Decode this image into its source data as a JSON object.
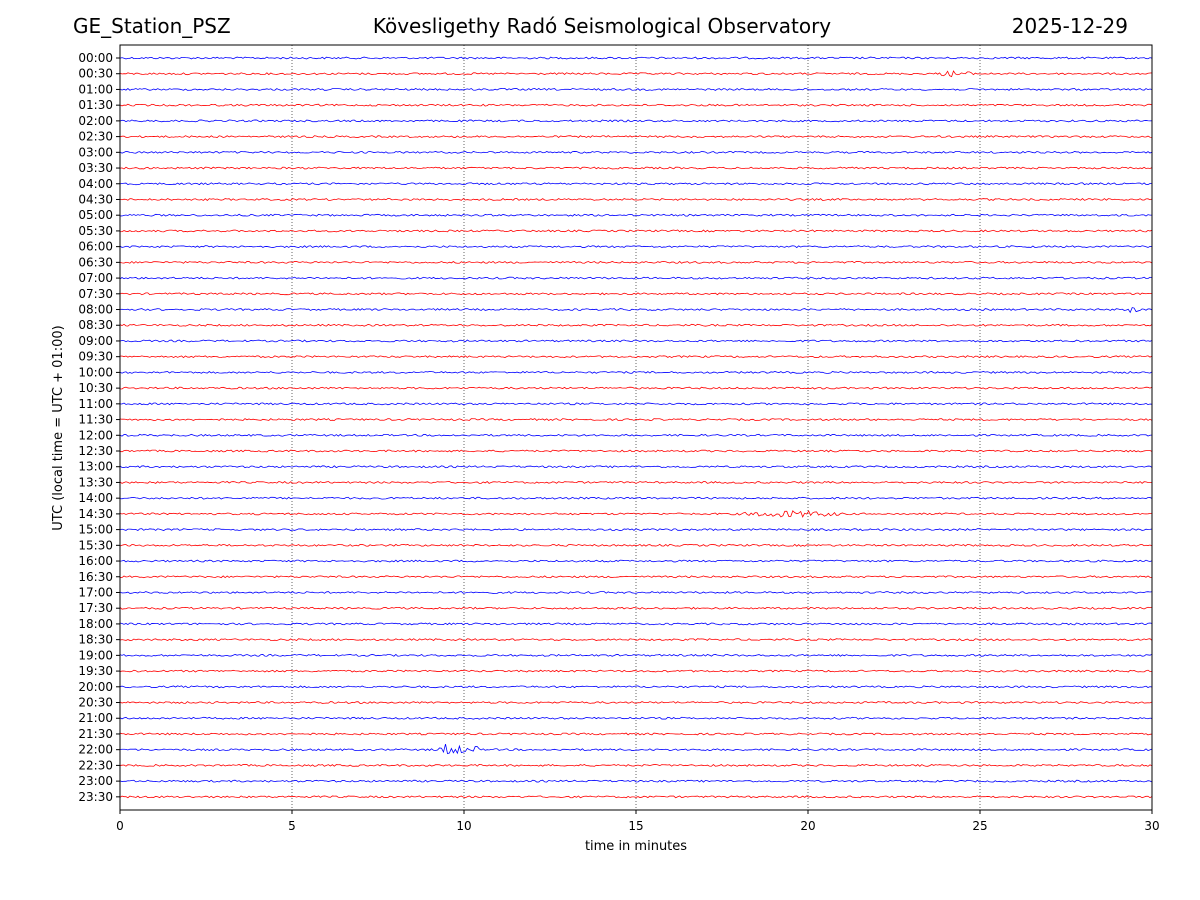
{
  "header": {
    "station": "GE_Station_PSZ",
    "title": "Kövesligethy Radó Seismological Observatory",
    "date": "2025-12-29"
  },
  "colors": {
    "even_trace": "#0000ff",
    "odd_trace": "#ff0000",
    "grid": "#000000"
  },
  "chart_data": {
    "type": "line",
    "title": "Kövesligethy Radó Seismological Observatory",
    "xlabel": "time in minutes",
    "ylabel": "UTC (local time = UTC + 01:00)",
    "xlim": [
      0,
      30
    ],
    "xticks": [
      0,
      5,
      10,
      15,
      20,
      25,
      30
    ],
    "grid": "vertical dotted at x ticks",
    "row_labels": [
      "00:00",
      "00:30",
      "01:00",
      "01:30",
      "02:00",
      "02:30",
      "03:00",
      "03:30",
      "04:00",
      "04:30",
      "05:00",
      "05:30",
      "06:00",
      "06:30",
      "07:00",
      "07:30",
      "08:00",
      "08:30",
      "09:00",
      "09:30",
      "10:00",
      "10:30",
      "11:00",
      "11:30",
      "12:00",
      "12:30",
      "13:00",
      "13:30",
      "14:00",
      "14:30",
      "15:00",
      "15:30",
      "16:00",
      "16:30",
      "17:00",
      "17:30",
      "18:00",
      "18:30",
      "19:00",
      "19:30",
      "20:00",
      "20:30",
      "21:00",
      "21:30",
      "22:00",
      "22:30",
      "23:00",
      "23:30"
    ],
    "trace_colors": [
      "blue",
      "red"
    ],
    "noise_amplitude": 0.06,
    "events": [
      {
        "row": "00:30",
        "start_min": 23.8,
        "end_min": 24.8,
        "amplitude": 0.22,
        "note": "small burst"
      },
      {
        "row": "08:00",
        "start_min": 29.3,
        "end_min": 29.6,
        "amplitude": 0.3,
        "note": "spike"
      },
      {
        "row": "14:30",
        "start_min": 18.0,
        "end_min": 21.0,
        "amplitude": 0.22,
        "note": "emergent event"
      },
      {
        "row": "22:00",
        "start_min": 9.2,
        "end_min": 10.4,
        "amplitude": 0.55,
        "note": "local event onset"
      }
    ]
  }
}
